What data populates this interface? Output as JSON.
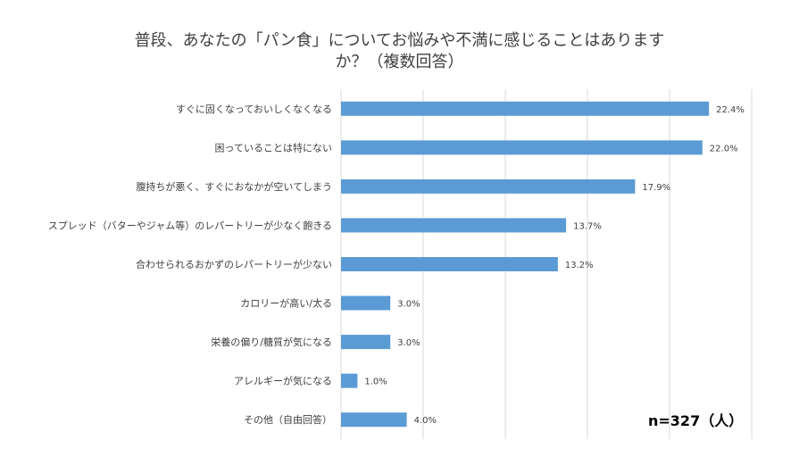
{
  "chart_data": {
    "type": "bar",
    "orientation": "horizontal",
    "title_line1": "普段、あなたの「パン食」についてお悩みや不満に感じることはありますか？",
    "title_line2": "か？（複数回答）",
    "title": "普段、あなたの「パン食」についてお悩みや不満に感じることはありますか？（複数回答）",
    "categories": [
      "すぐに固くなっておいしくなくなる",
      "困っていることは特にない",
      "腹持ちが悪く、すぐにおなかが空いてしまう",
      "スプレッド（バターやジャム等）のレパートリーが少なく飽きる",
      "合わせられるおかずのレパートリーが少ない",
      "カロリーが高い/太る",
      "栄養の偏り/糖質が気になる",
      "アレルギーが気になる",
      "その他（自由回答）"
    ],
    "values": [
      22.4,
      22.0,
      17.9,
      13.7,
      13.2,
      3.0,
      3.0,
      1.0,
      4.0
    ],
    "value_labels": [
      "22.4%",
      "22.0%",
      "17.9%",
      "13.7%",
      "13.2%",
      "3.0%",
      "3.0%",
      "1.0%",
      "4.0%"
    ],
    "xlim": [
      0,
      25
    ],
    "grid": true,
    "axis_labels_visible": false,
    "bar_color": "#5B9BD5",
    "gridline_color": "#D9D9D9",
    "note": "n=327（人）"
  }
}
